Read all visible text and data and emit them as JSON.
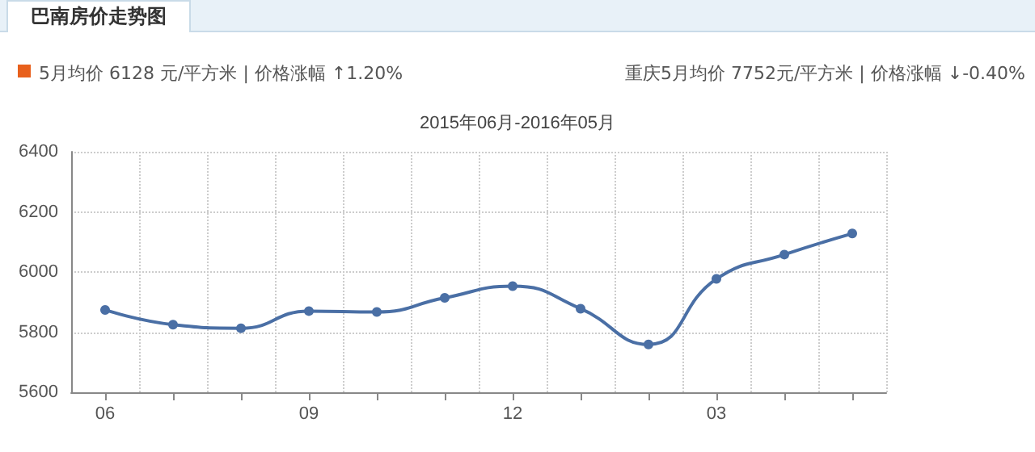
{
  "chart_data": {
    "type": "line",
    "title": "巴南房价走势图",
    "subtitle": "2015年06月-2016年05月",
    "annotations": [
      "5月均价 6128 元/平方米 | 价格涨幅 ↑1.20%",
      "重庆5月均价 7752元/平方米 | 价格涨幅 ↓-0.40%"
    ],
    "categories": [
      "06",
      null,
      null,
      "09",
      null,
      null,
      "12",
      null,
      null,
      "03",
      null,
      null
    ],
    "series": [
      {
        "color": "#4a6fa5",
        "values": [
          5874,
          5825,
          5813,
          5870,
          5867,
          5914,
          5953,
          5878,
          5759,
          5977,
          6058,
          6128
        ]
      }
    ],
    "ylim": [
      5600,
      6400
    ],
    "yticks": [
      5600,
      5800,
      6000,
      6200,
      6400
    ],
    "grid": true,
    "marker": "circle",
    "line_style": "solid"
  }
}
